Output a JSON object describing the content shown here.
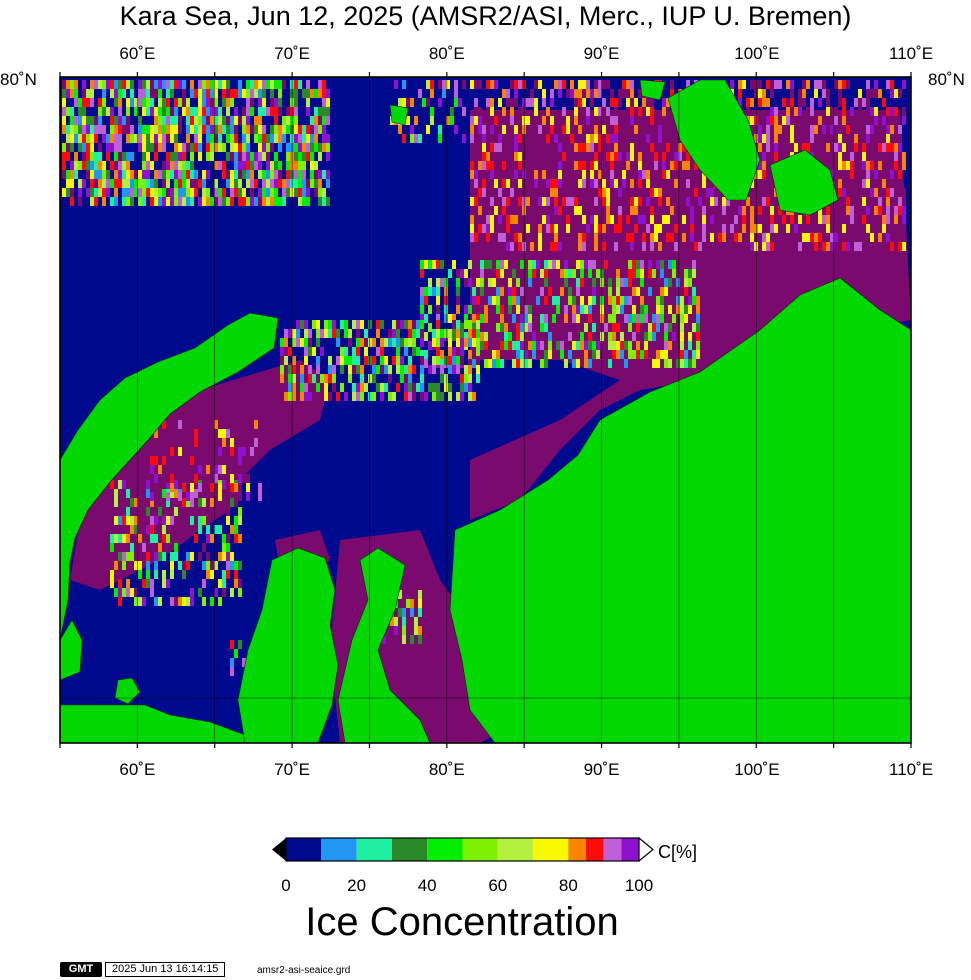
{
  "title": "Kara Sea, Jun 12, 2025 (AMSR2/ASI, Merc., IUP U. Bremen)",
  "map": {
    "lon_range": [
      55,
      110
    ],
    "lat_label": "80˚N",
    "lon_ticks": [
      {
        "lon": 60,
        "label": "60˚E"
      },
      {
        "lon": 70,
        "label": "70˚E"
      },
      {
        "lon": 80,
        "label": "80˚E"
      },
      {
        "lon": 90,
        "label": "90˚E"
      },
      {
        "lon": 100,
        "label": "100˚E"
      },
      {
        "lon": 110,
        "label": "110˚E"
      }
    ],
    "colors": {
      "ocean": "#000a8f",
      "land": "#00d800",
      "ice_high": "#7a0a6e"
    }
  },
  "colorbar": {
    "title": "Ice Concentration",
    "unit": "C[%]",
    "colors": [
      "#000a8f",
      "#2196f3",
      "#1ef0a0",
      "#2a8a2a",
      "#00ee00",
      "#7cf200",
      "#b4f040",
      "#f8f800",
      "#f88400",
      "#ff0a0a",
      "#c060d8",
      "#9010d0",
      "#7a0a6e"
    ],
    "ticks": [
      {
        "value": 0,
        "label": "0"
      },
      {
        "value": 20,
        "label": "20"
      },
      {
        "value": 40,
        "label": "40"
      },
      {
        "value": 60,
        "label": "60"
      },
      {
        "value": 80,
        "label": "80"
      },
      {
        "value": 100,
        "label": "100"
      }
    ]
  },
  "footer": {
    "logo": "GMT",
    "timestamp": "2025 Jun 13 16:14:15",
    "file": "amsr2-asi-seaice.grd"
  }
}
